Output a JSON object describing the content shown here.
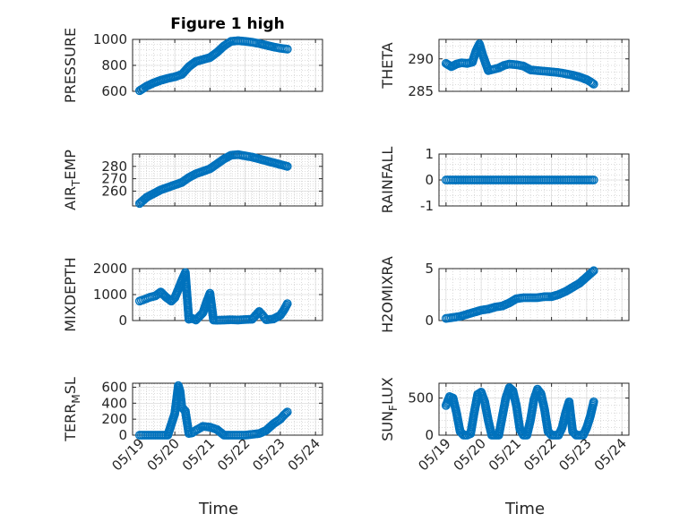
{
  "figure": {
    "title": "Figure 1 high",
    "colors": {
      "marker": "#0072bd",
      "axes": "#262626",
      "grid": "#d4d4d4"
    }
  },
  "chart_data": [
    {
      "type": "scatter",
      "title": "Figure 1 high",
      "xlabel": "",
      "ylabel": "PRESSURE",
      "ylim": [
        600,
        1000
      ],
      "yticks": [
        600,
        800,
        1000
      ],
      "yticklabels": [
        "600",
        "800",
        "1000"
      ],
      "grid": true,
      "minor_grid": true,
      "x": [
        0.0,
        0.2,
        0.4,
        0.6,
        0.8,
        1.0,
        1.2,
        1.4,
        1.6,
        1.8,
        2.0,
        2.2,
        2.4,
        2.6,
        2.8,
        3.0,
        3.2,
        3.4,
        3.6,
        3.8,
        4.0,
        4.2
      ],
      "y": [
        605,
        640,
        665,
        685,
        700,
        712,
        730,
        790,
        830,
        845,
        860,
        900,
        950,
        985,
        990,
        985,
        978,
        968,
        955,
        942,
        932,
        925
      ]
    },
    {
      "type": "scatter",
      "xlabel": "",
      "ylabel": "THETA",
      "ylim": [
        285,
        293
      ],
      "yticks": [
        285,
        290
      ],
      "yticklabels": [
        "285",
        "290"
      ],
      "grid": true,
      "minor_grid": true,
      "x": [
        0.0,
        0.15,
        0.3,
        0.45,
        0.6,
        0.75,
        0.85,
        0.95,
        1.05,
        1.2,
        1.35,
        1.5,
        1.65,
        1.8,
        2.0,
        2.2,
        2.4,
        2.6,
        2.8,
        3.0,
        3.2,
        3.4,
        3.6,
        3.8,
        4.0,
        4.1,
        4.2
      ],
      "y": [
        289.3,
        288.8,
        289.2,
        289.4,
        289.3,
        289.5,
        291.2,
        292.3,
        290.5,
        288.2,
        288.4,
        288.6,
        289.0,
        289.2,
        289.1,
        288.9,
        288.3,
        288.2,
        288.1,
        288.0,
        287.9,
        287.7,
        287.5,
        287.2,
        286.8,
        286.5,
        286.1
      ]
    },
    {
      "type": "scatter",
      "xlabel": "",
      "ylabel": "AIR_TEMP",
      "ylabel_base": "AIR",
      "ylabel_sub": "T",
      "ylabel_rest": "EMP",
      "ylim": [
        248,
        290
      ],
      "yticks": [
        260,
        270,
        280
      ],
      "yticklabels": [
        "260",
        "270",
        "280"
      ],
      "grid": true,
      "minor_grid": true,
      "x": [
        0.0,
        0.2,
        0.4,
        0.6,
        0.8,
        1.0,
        1.2,
        1.4,
        1.6,
        1.8,
        2.0,
        2.2,
        2.4,
        2.6,
        2.8,
        3.0,
        3.2,
        3.4,
        3.6,
        3.8,
        4.0,
        4.2
      ],
      "y": [
        250,
        255,
        258,
        261,
        263,
        265,
        267,
        271,
        274,
        276,
        278,
        282,
        286,
        289,
        289.5,
        288.5,
        287.5,
        286,
        284.5,
        283,
        281.5,
        280
      ]
    },
    {
      "type": "scatter",
      "xlabel": "",
      "ylabel": "RAINFALL",
      "ylim": [
        -1,
        1
      ],
      "yticks": [
        -1,
        0,
        1
      ],
      "yticklabels": [
        "-1",
        "0",
        "1"
      ],
      "grid": true,
      "minor_grid": true,
      "x": [
        0.0,
        0.2,
        0.4,
        0.6,
        0.8,
        1.0,
        1.2,
        1.4,
        1.6,
        1.8,
        2.0,
        2.2,
        2.4,
        2.6,
        2.8,
        3.0,
        3.2,
        3.4,
        3.6,
        3.8,
        4.0,
        4.2
      ],
      "y": [
        0,
        0,
        0,
        0,
        0,
        0,
        0,
        0,
        0,
        0,
        0,
        0,
        0,
        0,
        0,
        0,
        0,
        0,
        0,
        0,
        0,
        0
      ]
    },
    {
      "type": "scatter",
      "xlabel": "",
      "ylabel": "MIXDEPTH",
      "ylim": [
        0,
        2000
      ],
      "yticks": [
        0,
        1000,
        2000
      ],
      "yticklabels": [
        "0",
        "1000",
        "2000"
      ],
      "grid": true,
      "minor_grid": true,
      "x": [
        0.0,
        0.15,
        0.3,
        0.45,
        0.6,
        0.75,
        0.9,
        1.0,
        1.1,
        1.2,
        1.3,
        1.4,
        1.5,
        1.6,
        1.8,
        1.9,
        2.0,
        2.1,
        2.2,
        2.4,
        2.6,
        2.8,
        3.0,
        3.2,
        3.4,
        3.5,
        3.6,
        3.8,
        4.0,
        4.1,
        4.2
      ],
      "y": [
        750,
        820,
        900,
        950,
        1100,
        900,
        750,
        880,
        1200,
        1550,
        1850,
        50,
        80,
        20,
        300,
        700,
        1050,
        20,
        10,
        20,
        30,
        20,
        40,
        50,
        350,
        200,
        30,
        60,
        200,
        400,
        650
      ]
    },
    {
      "type": "scatter",
      "xlabel": "",
      "ylabel": "H2OMIXRA",
      "ylim": [
        0,
        5
      ],
      "yticks": [
        0,
        5
      ],
      "yticklabels": [
        "0",
        "5"
      ],
      "grid": true,
      "minor_grid": true,
      "x": [
        0.0,
        0.2,
        0.4,
        0.6,
        0.8,
        1.0,
        1.2,
        1.4,
        1.6,
        1.8,
        2.0,
        2.2,
        2.4,
        2.6,
        2.8,
        3.0,
        3.2,
        3.4,
        3.6,
        3.8,
        3.9,
        4.0,
        4.1,
        4.2
      ],
      "y": [
        0.2,
        0.3,
        0.4,
        0.6,
        0.8,
        1.0,
        1.1,
        1.3,
        1.4,
        1.7,
        2.1,
        2.2,
        2.2,
        2.2,
        2.3,
        2.3,
        2.5,
        2.8,
        3.2,
        3.6,
        3.9,
        4.2,
        4.5,
        4.8
      ]
    },
    {
      "type": "scatter",
      "xlabel": "Time",
      "ylabel": "TERR_MSL",
      "ylabel_base": "TERR",
      "ylabel_sub": "M",
      "ylabel_rest": "SL",
      "ylim": [
        0,
        650
      ],
      "yticks": [
        0,
        200,
        400,
        600
      ],
      "yticklabels": [
        "0",
        "200",
        "400",
        "600"
      ],
      "xlim": [
        0,
        5
      ],
      "xticks": [
        0,
        1,
        2,
        3,
        4,
        5
      ],
      "xticklabels": [
        "05/19",
        "05/20",
        "05/21",
        "05/22",
        "05/23",
        "05/24"
      ],
      "grid": true,
      "minor_grid": true,
      "x": [
        0.0,
        0.2,
        0.4,
        0.6,
        0.8,
        1.0,
        1.1,
        1.15,
        1.2,
        1.3,
        1.4,
        1.5,
        1.6,
        1.8,
        2.0,
        2.2,
        2.4,
        2.6,
        2.8,
        3.0,
        3.2,
        3.4,
        3.6,
        3.8,
        4.0,
        4.1,
        4.2
      ],
      "y": [
        0,
        0,
        0,
        0,
        0,
        270,
        620,
        550,
        350,
        300,
        20,
        30,
        60,
        110,
        100,
        70,
        0,
        0,
        0,
        0,
        10,
        20,
        60,
        140,
        200,
        250,
        290
      ]
    },
    {
      "type": "scatter",
      "xlabel": "Time",
      "ylabel": "SUN_FLUX",
      "ylabel_base": "SUN",
      "ylabel_sub": "F",
      "ylabel_rest": "LUX",
      "ylim": [
        0,
        700
      ],
      "yticks": [
        0,
        500
      ],
      "yticklabels": [
        "0",
        "500"
      ],
      "xlim": [
        0,
        5
      ],
      "xticks": [
        0,
        1,
        2,
        3,
        4,
        5
      ],
      "xticklabels": [
        "05/19",
        "05/20",
        "05/21",
        "05/22",
        "05/23",
        "05/24"
      ],
      "grid": true,
      "minor_grid": true,
      "x": [
        0.0,
        0.1,
        0.2,
        0.3,
        0.4,
        0.5,
        0.6,
        0.7,
        0.8,
        0.9,
        1.0,
        1.1,
        1.2,
        1.3,
        1.4,
        1.5,
        1.6,
        1.7,
        1.8,
        1.9,
        2.0,
        2.1,
        2.2,
        2.3,
        2.4,
        2.5,
        2.6,
        2.7,
        2.8,
        2.9,
        3.0,
        3.1,
        3.2,
        3.3,
        3.4,
        3.5,
        3.6,
        3.7,
        3.8,
        3.9,
        4.0,
        4.1,
        4.2
      ],
      "y": [
        400,
        520,
        500,
        300,
        50,
        0,
        0,
        20,
        300,
        550,
        580,
        450,
        200,
        0,
        0,
        0,
        250,
        500,
        640,
        600,
        400,
        80,
        0,
        0,
        200,
        480,
        620,
        560,
        350,
        50,
        0,
        0,
        0,
        100,
        300,
        450,
        50,
        0,
        0,
        0,
        100,
        250,
        450
      ]
    }
  ]
}
